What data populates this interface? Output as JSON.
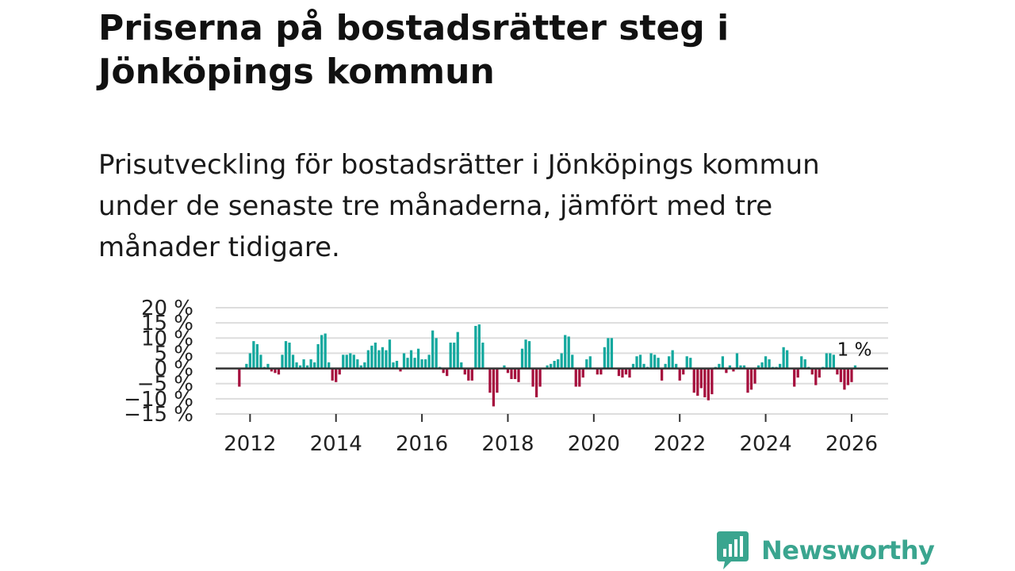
{
  "header": {
    "title": "Priserna på bostadsrätter steg i Jönköpings kommun",
    "subtitle": "Prisutveckling för bostadsrätter i Jönköpings kommun under de senaste tre månaderna, jämfört med tre månader tidigare."
  },
  "brand": {
    "name": "Newsworthy",
    "color": "#3aa58f"
  },
  "colors": {
    "positive": "#13a89e",
    "negative": "#a50f3d",
    "zero_line": "#333333",
    "grid": "#dddddd"
  },
  "chart_data": {
    "type": "bar",
    "title": "Priserna på bostadsrätter steg i Jönköpings kommun",
    "xlabel": "",
    "ylabel": "",
    "unit": "%",
    "x_start": 2011.75,
    "x_step": 0.0833333,
    "xlim": [
      2011.2,
      2026.85
    ],
    "ylim": [
      -15,
      20
    ],
    "y_ticks": [
      20,
      15,
      10,
      5,
      0,
      -5,
      -10,
      -15
    ],
    "y_tick_labels": [
      "20 %",
      "15 %",
      "10 %",
      "5 %",
      "0 %",
      "−5 %",
      "−10 %",
      "−15 %"
    ],
    "x_ticks": [
      2012,
      2014,
      2016,
      2018,
      2020,
      2022,
      2024,
      2026
    ],
    "x_tick_labels": [
      "2012",
      "2014",
      "2016",
      "2018",
      "2020",
      "2022",
      "2024",
      "2026"
    ],
    "values": [
      -6,
      0,
      1.5,
      5,
      9,
      8,
      4.5,
      0.5,
      1.5,
      -1,
      -1.5,
      -2,
      4.5,
      9,
      8.5,
      4.5,
      2,
      1,
      3,
      1,
      3,
      2,
      8,
      11,
      11.5,
      2,
      -4,
      -4.5,
      -2,
      4.5,
      4.5,
      5,
      4.5,
      3,
      1,
      2,
      6,
      7.5,
      8.5,
      6,
      7,
      6,
      9.5,
      2,
      2.5,
      -1,
      5,
      3.5,
      6,
      3.5,
      6.5,
      3,
      3,
      4.5,
      12.5,
      10,
      0.5,
      -1.5,
      -2.5,
      8.5,
      8.5,
      12,
      2,
      -2,
      -4,
      -4,
      14,
      14.5,
      8.5,
      0,
      -8,
      -12.5,
      -8,
      0,
      1,
      -1.5,
      -3.5,
      -3.5,
      -4.5,
      6.5,
      9.5,
      9,
      -6,
      -9.5,
      -6,
      0,
      1,
      1.5,
      2.5,
      3,
      5,
      11,
      10.5,
      4.5,
      -6,
      -6,
      -3,
      3,
      4,
      0,
      -2,
      -2,
      7,
      10,
      10,
      0,
      -2.5,
      -3,
      -2,
      -3,
      1.5,
      4,
      4.5,
      1.5,
      0.5,
      5,
      4.5,
      3.5,
      -4,
      1.5,
      4,
      6,
      1.5,
      -4,
      -2,
      4,
      3.5,
      -8,
      -9,
      -6.5,
      -9.5,
      -10.5,
      -8.5,
      0.5,
      1.5,
      4,
      -1.5,
      1,
      -1,
      5,
      1,
      1,
      -8,
      -7,
      -5,
      1,
      2,
      4,
      3,
      0.5,
      0.5,
      1.5,
      7,
      6,
      0,
      -6,
      -3,
      4,
      3,
      0.5,
      -2,
      -5.5,
      -3,
      0.5,
      5,
      5,
      4.5,
      -2,
      -4.5,
      -7,
      -5.5,
      -4.5,
      1
    ],
    "annotation": {
      "label": "1 %",
      "value": 1
    }
  }
}
